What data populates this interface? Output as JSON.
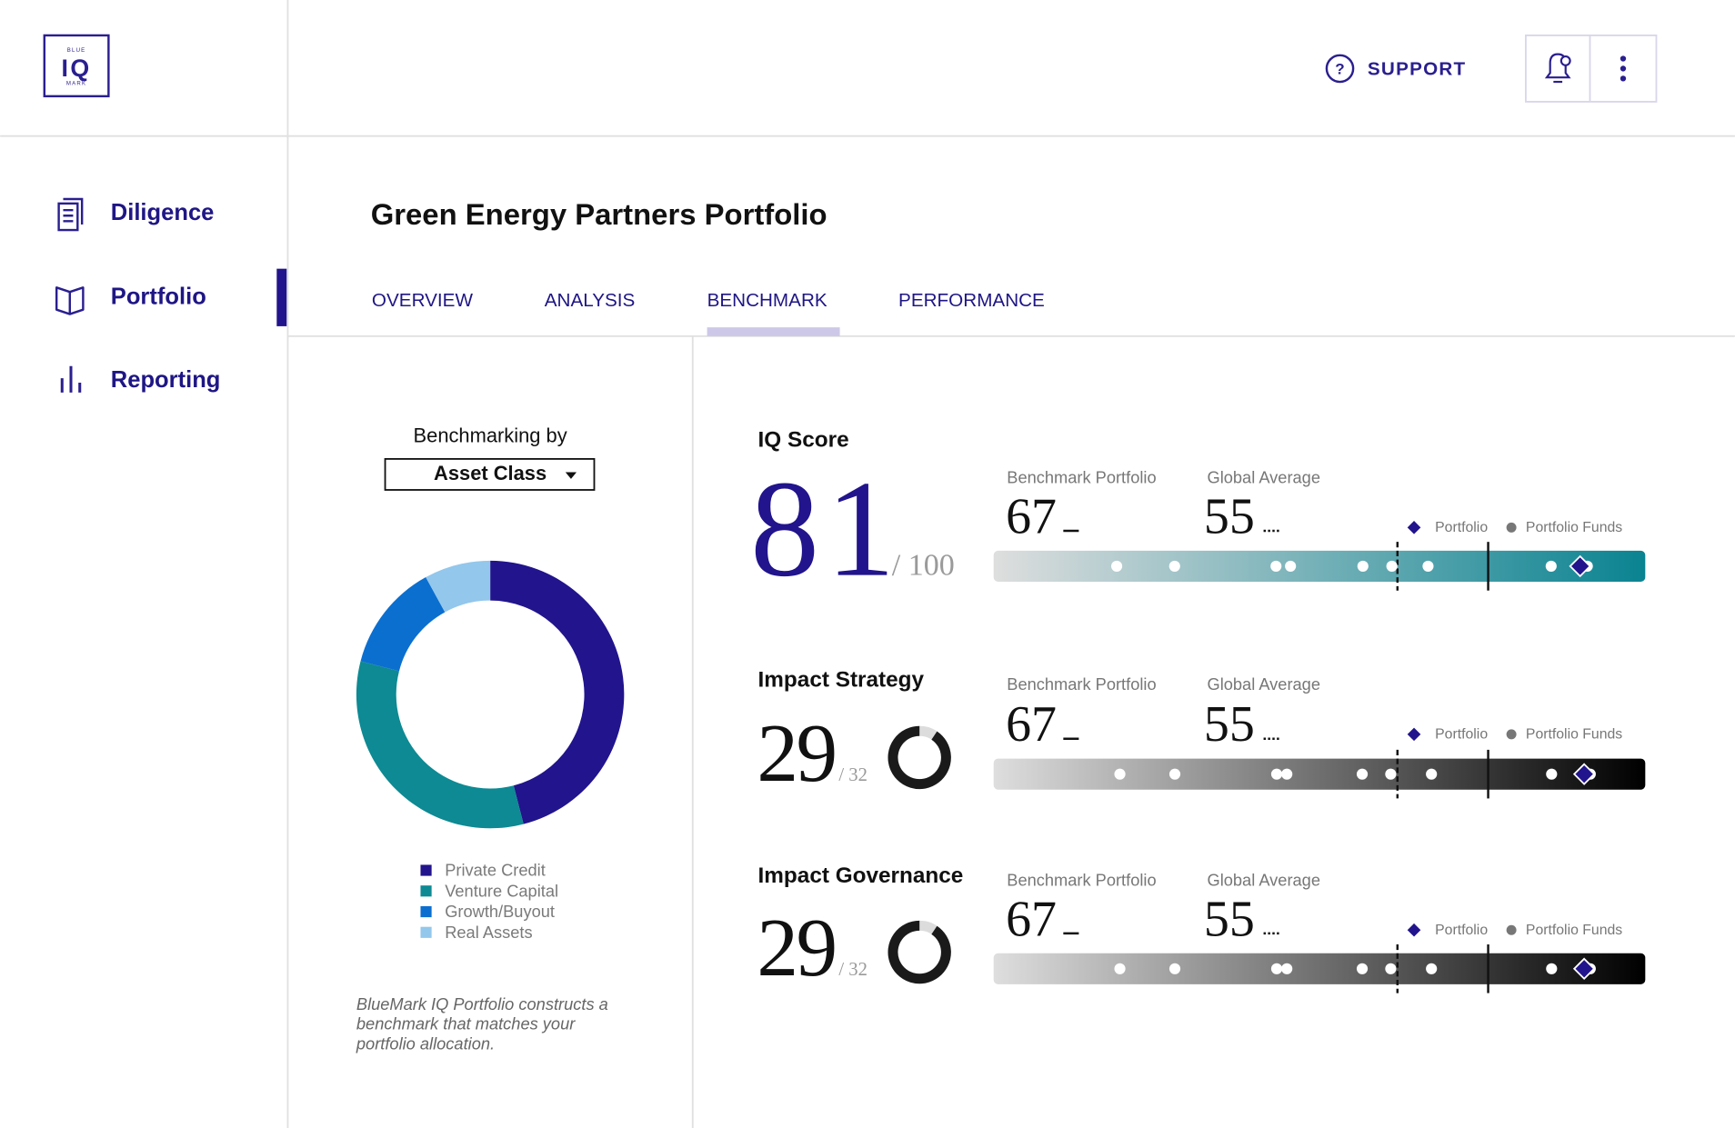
{
  "logo": {
    "top": "BLUE",
    "main": "IQ",
    "bottom": "MARK"
  },
  "header": {
    "support": "SUPPORT"
  },
  "nav": [
    "Diligence",
    "Portfolio",
    "Reporting"
  ],
  "page": {
    "title": "Green Energy Partners Portfolio",
    "tabs": [
      "OVERVIEW",
      "ANALYSIS",
      "BENCHMARK",
      "PERFORMANCE"
    ]
  },
  "chart_data": {
    "type": "donut",
    "label": "Benchmarking by",
    "selector": "Asset Class",
    "categories": [
      "Private Credit",
      "Venture Capital",
      "Growth/Buyout",
      "Real Assets"
    ],
    "values": [
      46,
      33,
      13,
      8
    ],
    "colors": [
      "#21148c",
      "#0d8a93",
      "#0b6fd0",
      "#93c7ec"
    ],
    "note": [
      "BlueMark IQ Portfolio constructs a",
      "benchmark that matches your",
      "portfolio allocation."
    ]
  },
  "scores": {
    "legend": {
      "portfolio": "Portfolio",
      "funds": "Portfolio Funds"
    },
    "rows": [
      {
        "label": "IQ Score",
        "score": 81,
        "max": {
          "value": 100,
          "label": "/ 100"
        },
        "benchmark": {
          "label": "Benchmark Portfolio",
          "value": 67
        },
        "global": {
          "label": "Global Average",
          "value": 55
        },
        "bar": {
          "color": "#0a8391",
          "xlim": [
            0,
            90
          ],
          "funds": [
            17,
            25,
            39,
            41,
            51,
            55,
            60,
            77,
            82
          ]
        }
      },
      {
        "label": "Impact Strategy",
        "score": 29,
        "max": {
          "value": 32,
          "label": "/ 32"
        },
        "benchmark": {
          "label": "Benchmark Portfolio",
          "value": 67
        },
        "global": {
          "label": "Global Average",
          "value": 55
        },
        "bar": {
          "color": "#000000",
          "xlim": [
            0,
            32
          ],
          "funds": [
            6.2,
            8.9,
            13.9,
            14.4,
            18.1,
            19.5,
            21.5,
            27.4,
            29.3
          ]
        }
      },
      {
        "label": "Impact Governance",
        "score": 29,
        "max": {
          "value": 32,
          "label": "/ 32"
        },
        "benchmark": {
          "label": "Benchmark Portfolio",
          "value": 67
        },
        "global": {
          "label": "Global Average",
          "value": 55
        },
        "bar": {
          "color": "#000000",
          "xlim": [
            0,
            32
          ],
          "funds": [
            6.2,
            8.9,
            13.9,
            14.4,
            18.1,
            19.5,
            21.5,
            27.4,
            29.3
          ]
        }
      }
    ]
  }
}
